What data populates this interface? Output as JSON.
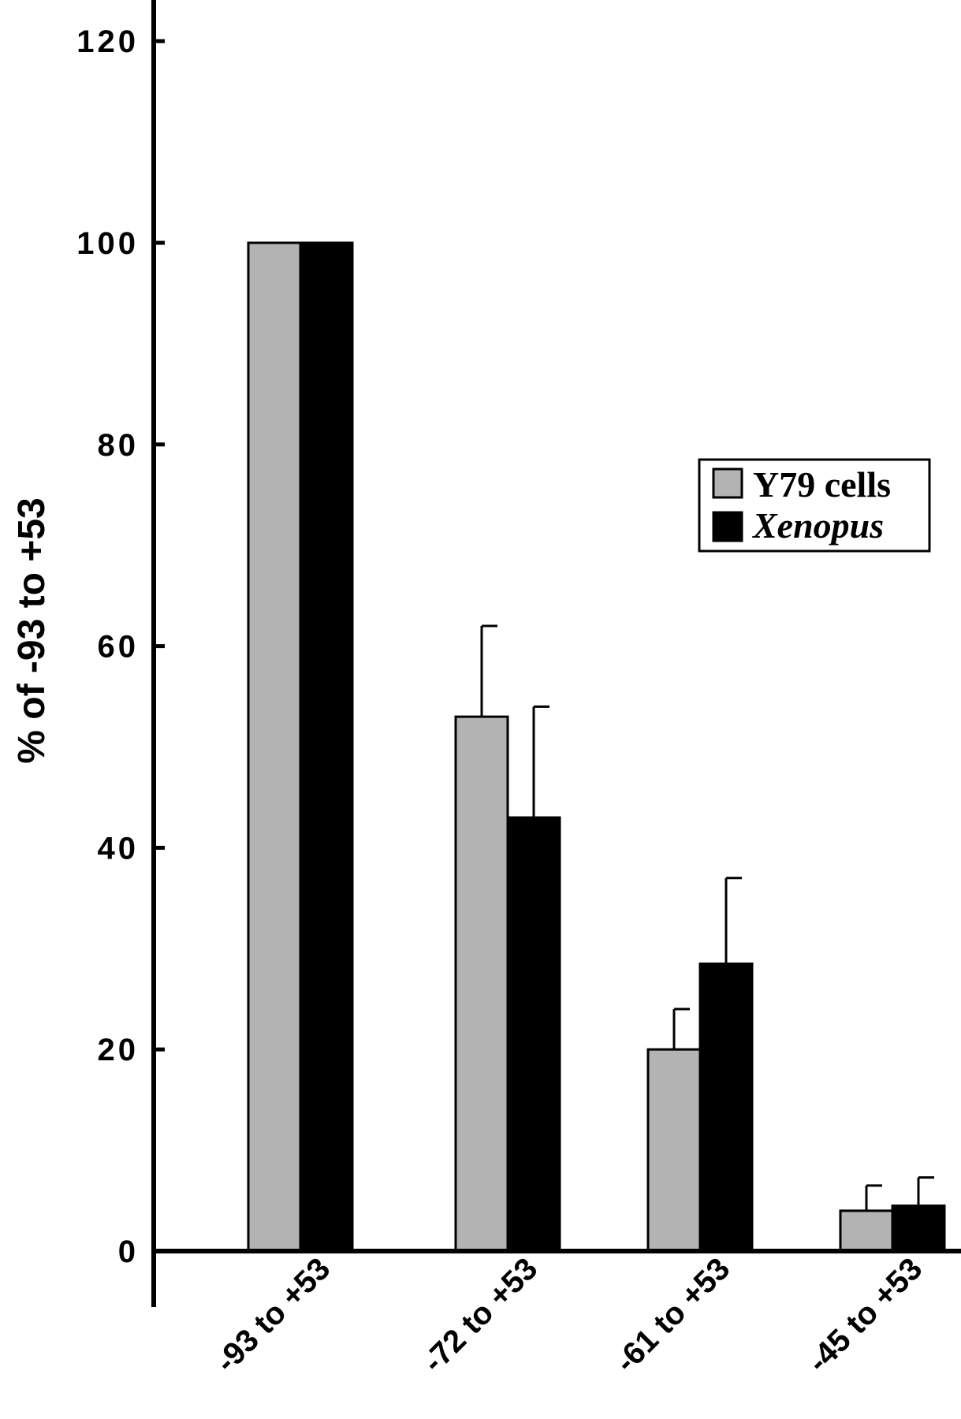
{
  "chart_data": {
    "type": "bar",
    "ylabel": "% of -93 to +53",
    "xlabel": "",
    "ylim": [
      0,
      120
    ],
    "yticks": [
      0,
      20,
      40,
      60,
      80,
      100,
      120
    ],
    "categories": [
      "-93 to +53",
      "-72 to +53",
      "-61 to +53",
      "-45 to +53"
    ],
    "series": [
      {
        "name": "Y79 cells",
        "color": "#b3b3b3",
        "values": [
          100,
          53,
          20,
          4
        ],
        "errors": [
          0,
          9,
          4,
          2.5
        ]
      },
      {
        "name": "Xenopus",
        "color": "#000000",
        "values": [
          100,
          43,
          28.5,
          4.5
        ],
        "errors": [
          0,
          11,
          8.5,
          2.8
        ]
      }
    ],
    "legend": {
      "position": "right",
      "italic_series": [
        "Xenopus"
      ]
    },
    "grid": false
  }
}
